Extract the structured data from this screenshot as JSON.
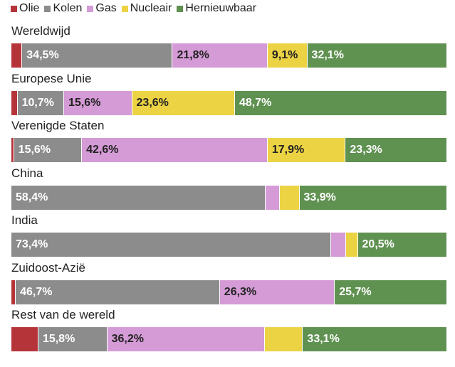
{
  "chart_data": {
    "type": "bar",
    "orientation": "horizontal",
    "stacked": true,
    "unit": "%",
    "legend_position": "top-left",
    "series": [
      {
        "name": "Olie",
        "color": "#b5343a"
      },
      {
        "name": "Kolen",
        "color": "#8c8c8c"
      },
      {
        "name": "Gas",
        "color": "#d49bd6"
      },
      {
        "name": "Nucleair",
        "color": "#ecd344"
      },
      {
        "name": "Hernieuwbaar",
        "color": "#5f9150"
      }
    ],
    "categories": [
      "Wereldwijd",
      "Europese Unie",
      "Verenigde Staten",
      "China",
      "India",
      "Zuidoost-Azië",
      "Rest van de wereld"
    ],
    "rows": [
      {
        "category": "Wereldwijd",
        "values": [
          2.5,
          34.5,
          21.8,
          9.1,
          32.1
        ],
        "labels": [
          "",
          "34,5%",
          "21,8%",
          "9,1%",
          "32,1%"
        ]
      },
      {
        "category": "Europese Unie",
        "values": [
          1.4,
          10.7,
          15.6,
          23.6,
          48.7
        ],
        "labels": [
          "",
          "10,7%",
          "15,6%",
          "23,6%",
          "48,7%"
        ]
      },
      {
        "category": "Verenigde Staten",
        "values": [
          0.6,
          15.6,
          42.6,
          17.9,
          23.3
        ],
        "labels": [
          "",
          "15,6%",
          "42,6%",
          "17,9%",
          "23,3%"
        ]
      },
      {
        "category": "China",
        "values": [
          0.0,
          58.4,
          3.2,
          4.5,
          33.9
        ],
        "labels": [
          "",
          "58,4%",
          "",
          "",
          "33,9%"
        ]
      },
      {
        "category": "India",
        "values": [
          0.0,
          73.4,
          3.4,
          2.7,
          20.5
        ],
        "labels": [
          "",
          "73,4%",
          "",
          "",
          "20,5%"
        ]
      },
      {
        "category": "Zuidoost-Azië",
        "values": [
          1.0,
          46.7,
          26.3,
          0.0,
          25.7
        ],
        "labels": [
          "",
          "46,7%",
          "26,3%",
          "",
          "25,7%"
        ]
      },
      {
        "category": "Rest van de wereld",
        "values": [
          6.2,
          15.8,
          36.2,
          8.7,
          33.1
        ],
        "labels": [
          "",
          "15,8%",
          "36,2%",
          "",
          "33,1%"
        ]
      }
    ]
  }
}
